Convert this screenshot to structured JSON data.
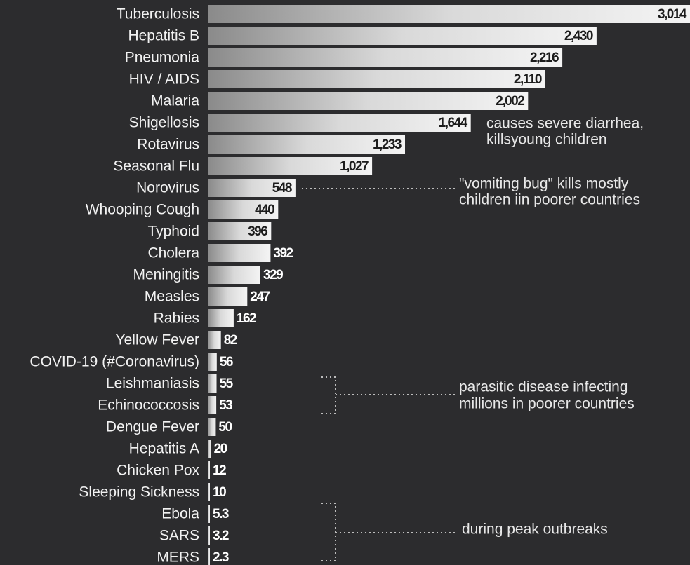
{
  "chart_data": {
    "type": "bar",
    "orientation": "horizontal",
    "bar_color": "#d9d9d9",
    "background_color": "#2c2c2e",
    "categories": [
      "Tuberculosis",
      "Hepatitis B",
      "Pneumonia",
      "HIV / AIDS",
      "Malaria",
      "Shigellosis",
      "Rotavirus",
      "Seasonal Flu",
      "Norovirus",
      "Whooping Cough",
      "Typhoid",
      "Cholera",
      "Meningitis",
      "Measles",
      "Rabies",
      "Yellow Fever",
      "COVID-19 (#Coronavirus)",
      "Leishmaniasis",
      "Echinococcosis",
      "Dengue Fever",
      "Hepatitis A",
      "Chicken Pox",
      "Sleeping Sickness",
      "Ebola",
      "SARS",
      "MERS"
    ],
    "values": [
      3014,
      2430,
      2216,
      2110,
      2002,
      1644,
      1233,
      1027,
      548,
      440,
      396,
      392,
      329,
      247,
      162,
      82,
      56,
      55,
      53,
      50,
      20,
      12,
      10,
      5.3,
      3.2,
      2.3
    ],
    "value_labels": [
      "3,014",
      "2,430",
      "2,216",
      "2,110",
      "2,002",
      "1,644",
      "1,233",
      "1,027",
      "548",
      "440",
      "396",
      "392",
      "329",
      "247",
      "162",
      "82",
      "56",
      "55",
      "53",
      "50",
      "20",
      "12",
      "10",
      "5.3",
      "3.2",
      "2.3"
    ],
    "xlim": [
      0,
      3014
    ],
    "annotations": [
      {
        "id": "shigellosis",
        "lines": [
          "causes severe diarrhea,",
          "killsyoung children"
        ]
      },
      {
        "id": "norovirus",
        "lines": [
          "\"vomiting bug\" kills mostly",
          "children iin poorer countries"
        ]
      },
      {
        "id": "parasitic",
        "lines": [
          "parasitic disease infecting",
          "millions in poorer countries"
        ]
      },
      {
        "id": "outbreaks",
        "lines": [
          "during peak outbreaks"
        ]
      }
    ]
  }
}
